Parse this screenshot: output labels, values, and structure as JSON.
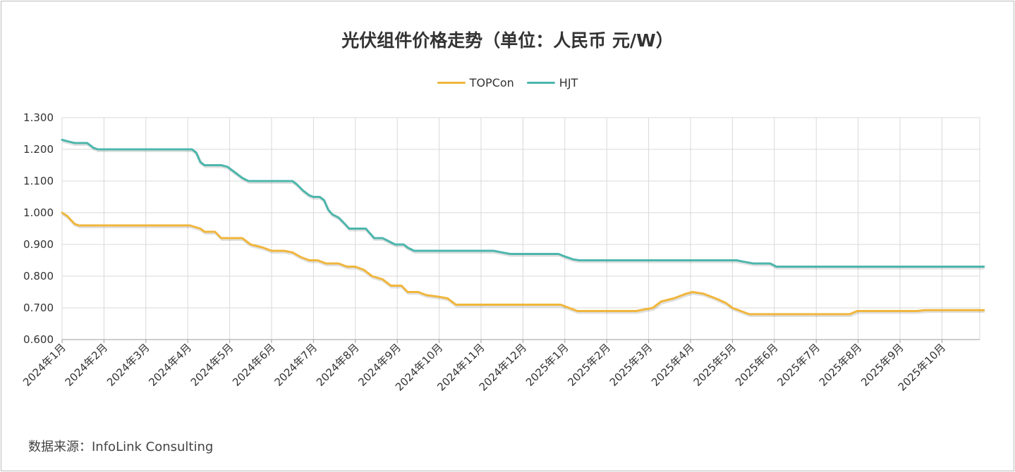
{
  "chart_data": {
    "type": "line",
    "title": "光伏组件价格走势（单位：人民币 元/W）",
    "source": "数据来源：InfoLink Consulting",
    "categories": [
      "2024年1月",
      "2024年2月",
      "2024年3月",
      "2024年4月",
      "2024年5月",
      "2024年6月",
      "2024年7月",
      "2024年8月",
      "2024年9月",
      "2024年10月",
      "2024年11月",
      "2024年12月",
      "2025年1月",
      "2025年2月",
      "2025年3月",
      "2025年4月",
      "2025年5月",
      "2025年6月",
      "2025年7月",
      "2025年8月",
      "2025年9月",
      "2025年10月"
    ],
    "y_ticks": [
      "0.600",
      "0.700",
      "0.800",
      "0.900",
      "1.000",
      "1.100",
      "1.200",
      "1.300"
    ],
    "ylim": [
      0.6,
      1.3
    ],
    "grid": true,
    "legend_position": "top-center",
    "series": [
      {
        "name": "TOPCon",
        "color": "#f0b63c",
        "points": [
          [
            0.0,
            1.0
          ],
          [
            0.12,
            0.99
          ],
          [
            0.3,
            0.965
          ],
          [
            0.4,
            0.96
          ],
          [
            1.0,
            0.96
          ],
          [
            2.0,
            0.96
          ],
          [
            2.9,
            0.96
          ],
          [
            3.05,
            0.96
          ],
          [
            3.3,
            0.95
          ],
          [
            3.4,
            0.94
          ],
          [
            3.65,
            0.94
          ],
          [
            3.8,
            0.92
          ],
          [
            4.0,
            0.92
          ],
          [
            4.3,
            0.92
          ],
          [
            4.5,
            0.9
          ],
          [
            4.8,
            0.89
          ],
          [
            5.0,
            0.88
          ],
          [
            5.3,
            0.88
          ],
          [
            5.5,
            0.875
          ],
          [
            5.7,
            0.86
          ],
          [
            5.9,
            0.85
          ],
          [
            6.1,
            0.85
          ],
          [
            6.3,
            0.84
          ],
          [
            6.6,
            0.84
          ],
          [
            6.8,
            0.83
          ],
          [
            7.0,
            0.83
          ],
          [
            7.2,
            0.82
          ],
          [
            7.4,
            0.8
          ],
          [
            7.65,
            0.79
          ],
          [
            7.85,
            0.77
          ],
          [
            8.1,
            0.77
          ],
          [
            8.25,
            0.75
          ],
          [
            8.5,
            0.75
          ],
          [
            8.7,
            0.74
          ],
          [
            9.0,
            0.735
          ],
          [
            9.2,
            0.73
          ],
          [
            9.4,
            0.71
          ],
          [
            10.0,
            0.71
          ],
          [
            11.0,
            0.71
          ],
          [
            11.5,
            0.71
          ],
          [
            11.9,
            0.71
          ],
          [
            12.1,
            0.7
          ],
          [
            12.3,
            0.69
          ],
          [
            13.0,
            0.69
          ],
          [
            13.7,
            0.69
          ],
          [
            14.1,
            0.7
          ],
          [
            14.3,
            0.72
          ],
          [
            14.6,
            0.73
          ],
          [
            14.9,
            0.745
          ],
          [
            15.05,
            0.75
          ],
          [
            15.3,
            0.745
          ],
          [
            15.6,
            0.73
          ],
          [
            15.85,
            0.715
          ],
          [
            16.0,
            0.7
          ],
          [
            16.2,
            0.69
          ],
          [
            16.4,
            0.68
          ],
          [
            17.0,
            0.68
          ],
          [
            18.0,
            0.68
          ],
          [
            18.8,
            0.68
          ],
          [
            18.98,
            0.69
          ],
          [
            19.5,
            0.69
          ],
          [
            20.0,
            0.69
          ],
          [
            20.4,
            0.69
          ],
          [
            20.6,
            0.693
          ],
          [
            21.0,
            0.693
          ],
          [
            22.0,
            0.693
          ]
        ]
      },
      {
        "name": "HJT",
        "color": "#4db6ac",
        "points": [
          [
            0.0,
            1.23
          ],
          [
            0.15,
            1.225
          ],
          [
            0.3,
            1.22
          ],
          [
            0.5,
            1.22
          ],
          [
            0.6,
            1.22
          ],
          [
            0.75,
            1.205
          ],
          [
            0.85,
            1.2
          ],
          [
            1.0,
            1.2
          ],
          [
            2.0,
            1.2
          ],
          [
            3.0,
            1.2
          ],
          [
            3.1,
            1.2
          ],
          [
            3.2,
            1.19
          ],
          [
            3.3,
            1.16
          ],
          [
            3.4,
            1.15
          ],
          [
            3.8,
            1.15
          ],
          [
            3.95,
            1.145
          ],
          [
            4.1,
            1.13
          ],
          [
            4.3,
            1.11
          ],
          [
            4.45,
            1.1
          ],
          [
            5.0,
            1.1
          ],
          [
            5.4,
            1.1
          ],
          [
            5.5,
            1.1
          ],
          [
            5.6,
            1.09
          ],
          [
            5.75,
            1.07
          ],
          [
            5.9,
            1.055
          ],
          [
            6.0,
            1.05
          ],
          [
            6.15,
            1.05
          ],
          [
            6.25,
            1.04
          ],
          [
            6.35,
            1.01
          ],
          [
            6.45,
            0.995
          ],
          [
            6.6,
            0.985
          ],
          [
            6.75,
            0.965
          ],
          [
            6.85,
            0.95
          ],
          [
            7.05,
            0.95
          ],
          [
            7.25,
            0.95
          ],
          [
            7.35,
            0.935
          ],
          [
            7.45,
            0.92
          ],
          [
            7.65,
            0.92
          ],
          [
            7.8,
            0.91
          ],
          [
            7.95,
            0.9
          ],
          [
            8.15,
            0.9
          ],
          [
            8.25,
            0.89
          ],
          [
            8.4,
            0.88
          ],
          [
            9.0,
            0.88
          ],
          [
            10.0,
            0.88
          ],
          [
            10.3,
            0.88
          ],
          [
            10.5,
            0.875
          ],
          [
            10.7,
            0.87
          ],
          [
            11.0,
            0.87
          ],
          [
            11.5,
            0.87
          ],
          [
            11.85,
            0.87
          ],
          [
            12.0,
            0.862
          ],
          [
            12.2,
            0.853
          ],
          [
            12.35,
            0.85
          ],
          [
            13.0,
            0.85
          ],
          [
            14.0,
            0.85
          ],
          [
            15.0,
            0.85
          ],
          [
            16.0,
            0.85
          ],
          [
            16.1,
            0.85
          ],
          [
            16.3,
            0.845
          ],
          [
            16.5,
            0.84
          ],
          [
            16.9,
            0.84
          ],
          [
            17.05,
            0.83
          ],
          [
            18.0,
            0.83
          ],
          [
            19.0,
            0.83
          ],
          [
            20.0,
            0.83
          ],
          [
            21.0,
            0.83
          ],
          [
            22.0,
            0.83
          ]
        ]
      }
    ]
  },
  "colors": {
    "grid": "#d9d9d9",
    "axis": "#9e9e9e",
    "text": "#333333",
    "frame": "#bdbdbd"
  }
}
